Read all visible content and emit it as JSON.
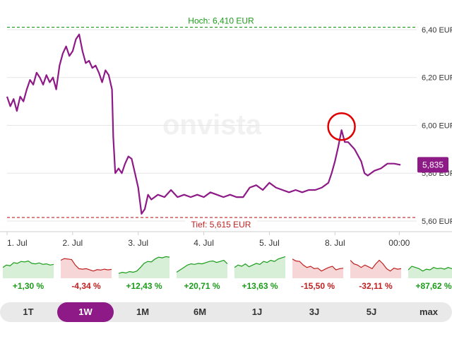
{
  "watermark": "onvista",
  "high_label": "Hoch: 6,410 EUR",
  "low_label": "Tief: 5,615 EUR",
  "current_badge": "5,835",
  "colors": {
    "line": "#8e1a87",
    "high": "#1a9c1a",
    "low": "#c02020",
    "marker": "#e00000"
  },
  "chart_data": {
    "type": "line",
    "title": "",
    "xlabel": "",
    "ylabel": "",
    "ylim": [
      5.6,
      6.45
    ],
    "ytick_labels": [
      "6,40 EUR",
      "6,20 EUR",
      "6,00 EUR",
      "5,80 EUR",
      "5,60 EUR"
    ],
    "yticks": [
      6.4,
      6.2,
      6.0,
      5.8,
      5.6
    ],
    "x_labels": [
      "1. Jul",
      "2. Jul",
      "3. Jul",
      "4. Jul",
      "5. Jul",
      "8. Jul",
      "00:00"
    ],
    "x_label_times": [
      0,
      1,
      2,
      3,
      4,
      5,
      5.98
    ],
    "xlim": [
      0,
      6.3
    ],
    "high": 6.41,
    "low": 5.615,
    "last": 5.835,
    "marker_time": 5.1,
    "marker_value": 5.98,
    "series": [
      {
        "values": [
          [
            0.0,
            6.12
          ],
          [
            0.05,
            6.08
          ],
          [
            0.1,
            6.11
          ],
          [
            0.15,
            6.06
          ],
          [
            0.2,
            6.12
          ],
          [
            0.25,
            6.1
          ],
          [
            0.3,
            6.15
          ],
          [
            0.35,
            6.19
          ],
          [
            0.4,
            6.17
          ],
          [
            0.45,
            6.22
          ],
          [
            0.5,
            6.2
          ],
          [
            0.55,
            6.17
          ],
          [
            0.6,
            6.21
          ],
          [
            0.65,
            6.18
          ],
          [
            0.7,
            6.2
          ],
          [
            0.75,
            6.15
          ],
          [
            0.8,
            6.25
          ],
          [
            0.85,
            6.3
          ],
          [
            0.9,
            6.33
          ],
          [
            0.95,
            6.29
          ],
          [
            1.0,
            6.31
          ],
          [
            1.05,
            6.36
          ],
          [
            1.1,
            6.38
          ],
          [
            1.15,
            6.31
          ],
          [
            1.2,
            6.26
          ],
          [
            1.25,
            6.27
          ],
          [
            1.3,
            6.24
          ],
          [
            1.35,
            6.25
          ],
          [
            1.4,
            6.22
          ],
          [
            1.45,
            6.18
          ],
          [
            1.5,
            6.23
          ],
          [
            1.55,
            6.21
          ],
          [
            1.6,
            6.15
          ],
          [
            1.62,
            5.95
          ],
          [
            1.65,
            5.8
          ],
          [
            1.7,
            5.82
          ],
          [
            1.75,
            5.8
          ],
          [
            1.8,
            5.84
          ],
          [
            1.85,
            5.87
          ],
          [
            1.9,
            5.86
          ],
          [
            1.95,
            5.8
          ],
          [
            2.0,
            5.74
          ],
          [
            2.05,
            5.63
          ],
          [
            2.1,
            5.65
          ],
          [
            2.15,
            5.71
          ],
          [
            2.2,
            5.69
          ],
          [
            2.3,
            5.71
          ],
          [
            2.4,
            5.7
          ],
          [
            2.5,
            5.73
          ],
          [
            2.6,
            5.7
          ],
          [
            2.7,
            5.71
          ],
          [
            2.8,
            5.7
          ],
          [
            2.9,
            5.71
          ],
          [
            3.0,
            5.7
          ],
          [
            3.1,
            5.72
          ],
          [
            3.2,
            5.71
          ],
          [
            3.3,
            5.7
          ],
          [
            3.4,
            5.71
          ],
          [
            3.5,
            5.7
          ],
          [
            3.6,
            5.7
          ],
          [
            3.7,
            5.74
          ],
          [
            3.8,
            5.75
          ],
          [
            3.9,
            5.73
          ],
          [
            4.0,
            5.76
          ],
          [
            4.1,
            5.74
          ],
          [
            4.2,
            5.73
          ],
          [
            4.3,
            5.72
          ],
          [
            4.4,
            5.73
          ],
          [
            4.5,
            5.72
          ],
          [
            4.6,
            5.73
          ],
          [
            4.7,
            5.73
          ],
          [
            4.8,
            5.74
          ],
          [
            4.9,
            5.76
          ],
          [
            4.95,
            5.8
          ],
          [
            5.0,
            5.85
          ],
          [
            5.05,
            5.91
          ],
          [
            5.1,
            5.98
          ],
          [
            5.15,
            5.93
          ],
          [
            5.2,
            5.93
          ],
          [
            5.3,
            5.9
          ],
          [
            5.4,
            5.85
          ],
          [
            5.45,
            5.8
          ],
          [
            5.5,
            5.79
          ],
          [
            5.6,
            5.81
          ],
          [
            5.7,
            5.82
          ],
          [
            5.8,
            5.84
          ],
          [
            5.9,
            5.84
          ],
          [
            6.0,
            5.835
          ]
        ]
      }
    ]
  },
  "mini_charts": [
    {
      "label": "+1,30 %",
      "sign": "pos",
      "values": [
        0.45,
        0.55,
        0.52,
        0.65,
        0.62,
        0.7,
        0.68,
        0.72,
        0.62,
        0.6,
        0.64,
        0.58,
        0.6,
        0.55,
        0.58
      ]
    },
    {
      "label": "-4,34 %",
      "sign": "neg",
      "values": [
        0.75,
        0.82,
        0.8,
        0.78,
        0.55,
        0.4,
        0.38,
        0.4,
        0.35,
        0.3,
        0.36,
        0.34,
        0.38,
        0.35,
        0.37
      ]
    },
    {
      "label": "+12,43 %",
      "sign": "pos",
      "values": [
        0.2,
        0.25,
        0.22,
        0.28,
        0.25,
        0.3,
        0.45,
        0.62,
        0.7,
        0.68,
        0.8,
        0.88,
        0.85,
        0.9,
        0.88
      ]
    },
    {
      "label": "+20,71 %",
      "sign": "pos",
      "values": [
        0.25,
        0.35,
        0.45,
        0.55,
        0.6,
        0.58,
        0.62,
        0.6,
        0.65,
        0.7,
        0.72,
        0.66,
        0.7,
        0.75,
        0.6
      ]
    },
    {
      "label": "+13,63 %",
      "sign": "pos",
      "values": [
        0.45,
        0.55,
        0.5,
        0.6,
        0.48,
        0.55,
        0.62,
        0.58,
        0.7,
        0.66,
        0.75,
        0.7,
        0.8,
        0.85,
        0.9
      ]
    },
    {
      "label": "-15,50 %",
      "sign": "neg",
      "values": [
        0.8,
        0.72,
        0.7,
        0.55,
        0.45,
        0.5,
        0.4,
        0.42,
        0.3,
        0.38,
        0.45,
        0.5,
        0.35,
        0.4,
        0.42
      ]
    },
    {
      "label": "-32,11 %",
      "sign": "neg",
      "values": [
        0.75,
        0.6,
        0.55,
        0.45,
        0.55,
        0.48,
        0.4,
        0.6,
        0.75,
        0.6,
        0.4,
        0.3,
        0.42,
        0.38,
        0.4
      ]
    },
    {
      "label": "+87,62 %",
      "sign": "pos",
      "values": [
        0.35,
        0.5,
        0.45,
        0.4,
        0.3,
        0.38,
        0.35,
        0.45,
        0.4,
        0.42,
        0.38,
        0.45,
        0.4,
        0.44,
        0.42
      ]
    }
  ],
  "ranges": [
    {
      "label": "1T",
      "active": false
    },
    {
      "label": "1W",
      "active": true
    },
    {
      "label": "1M",
      "active": false
    },
    {
      "label": "6M",
      "active": false
    },
    {
      "label": "1J",
      "active": false
    },
    {
      "label": "3J",
      "active": false
    },
    {
      "label": "5J",
      "active": false
    },
    {
      "label": "max",
      "active": false
    }
  ]
}
